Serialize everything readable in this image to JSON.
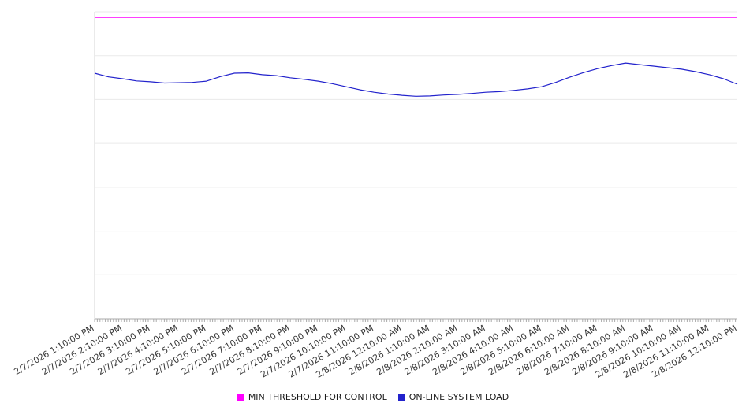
{
  "chart_data": {
    "type": "line",
    "title": "",
    "xlabel": "",
    "ylabel": "",
    "ylim": [
      0,
      100
    ],
    "y_gridline_intervals": 7,
    "grid": true,
    "legend_position": "bottom",
    "x_labels": [
      "2/7/2026 1:10:00 PM",
      "2/7/2026 2:10:00 PM",
      "2/7/2026 3:10:00 PM",
      "2/7/2026 4:10:00 PM",
      "2/7/2026 5:10:00 PM",
      "2/7/2026 6:10:00 PM",
      "2/7/2026 7:10:00 PM",
      "2/7/2026 8:10:00 PM",
      "2/7/2026 9:10:00 PM",
      "2/7/2026 10:10:00 PM",
      "2/7/2026 11:10:00 PM",
      "2/8/2026 12:10:00 AM",
      "2/8/2026 1:10:00 AM",
      "2/8/2026 2:10:00 AM",
      "2/8/2026 3:10:00 AM",
      "2/8/2026 4:10:00 AM",
      "2/8/2026 5:10:00 AM",
      "2/8/2026 6:10:00 AM",
      "2/8/2026 7:10:00 AM",
      "2/8/2026 8:10:00 AM",
      "2/8/2026 9:10:00 AM",
      "2/8/2026 10:10:00 AM",
      "2/8/2026 11:10:00 AM",
      "2/8/2026 12:10:00 PM"
    ],
    "series": [
      {
        "name": "MIN THRESHOLD FOR CONTROL",
        "color": "#ff00ff",
        "style": "threshold",
        "value": 98.2
      },
      {
        "name": "ON-LINE SYSTEM LOAD",
        "color": "#2222cc",
        "style": "line",
        "values": [
          80.0,
          78.8,
          78.2,
          77.5,
          77.2,
          76.8,
          76.9,
          77.0,
          77.4,
          78.9,
          80.0,
          80.1,
          79.5,
          79.2,
          78.5,
          78.0,
          77.4,
          76.6,
          75.6,
          74.6,
          73.8,
          73.2,
          72.8,
          72.5,
          72.6,
          72.9,
          73.1,
          73.4,
          73.8,
          74.0,
          74.4,
          74.9,
          75.6,
          77.0,
          78.7,
          80.2,
          81.5,
          82.5,
          83.3,
          82.8,
          82.3,
          81.8,
          81.3,
          80.5,
          79.5,
          78.2,
          76.4
        ]
      }
    ]
  }
}
